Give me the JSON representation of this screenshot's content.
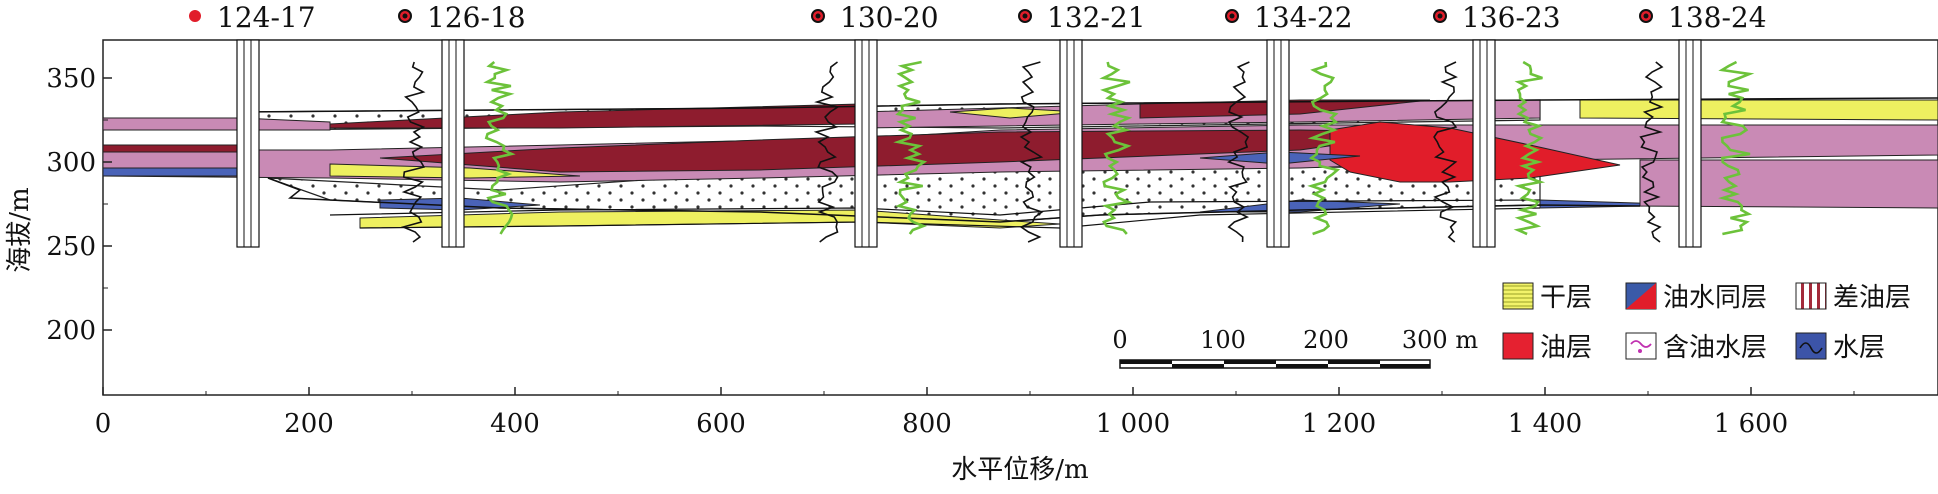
{
  "figure": {
    "xlabel": "水平位移/m",
    "ylabel": "海拔/m",
    "x_ticks": [
      "0",
      "200",
      "400",
      "600",
      "800",
      "1 000",
      "1 200",
      "1 400",
      "1 600"
    ],
    "y_ticks": [
      "350",
      "300",
      "250",
      "200"
    ]
  },
  "wells": [
    {
      "name": "124-17",
      "x_m": 145
    },
    {
      "name": "126-18",
      "x_m": 345
    },
    {
      "name": "130-20",
      "x_m": 740
    },
    {
      "name": "132-21",
      "x_m": 940
    },
    {
      "name": "134-22",
      "x_m": 1140
    },
    {
      "name": "136-23",
      "x_m": 1340
    },
    {
      "name": "138-24",
      "x_m": 1540
    }
  ],
  "legend": [
    {
      "key": "dry",
      "label": "干层",
      "color": "#e8ec58"
    },
    {
      "key": "oil-water",
      "label": "油水同层",
      "color": "#3a5aa8"
    },
    {
      "key": "poor-oil",
      "label": "差油层",
      "color": "#a32a3a"
    },
    {
      "key": "oil",
      "label": "油层",
      "color": "#e52130"
    },
    {
      "key": "oil-bearing-water",
      "label": "含油水层",
      "color": "#ffffff"
    },
    {
      "key": "water",
      "label": "水层",
      "color": "#3c54a8"
    }
  ],
  "scale_bar": {
    "labels": [
      "0",
      "100",
      "200",
      "300 m"
    ]
  },
  "layer_colors": {
    "pink": "#c98ab5",
    "darkred": "#8e1c2e",
    "red": "#e11d2a",
    "yellow": "#eef060",
    "blue": "#4a63b8",
    "green_log": "#6cc23a"
  }
}
